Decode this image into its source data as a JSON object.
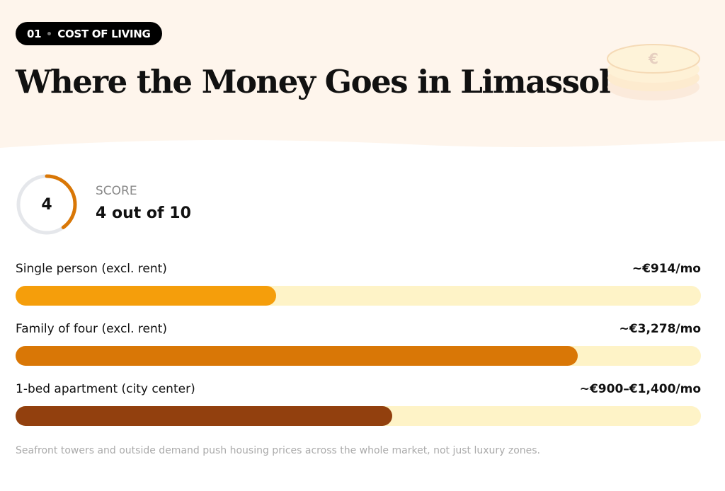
{
  "section": {
    "number": "01",
    "label": "COST OF LIVING"
  },
  "title": "Where the Money Goes in Limassol",
  "coin_symbol": "€",
  "score": {
    "value": "4",
    "label": "SCORE",
    "text": "4 out of 10",
    "fraction": 0.4,
    "color": "#d97706"
  },
  "costs": [
    {
      "label": "Single person (excl. rent)",
      "value": "~€914/mo",
      "fill_percent": 38,
      "color": "#f59e0b"
    },
    {
      "label": "Family of four (excl. rent)",
      "value": "~€3,278/mo",
      "fill_percent": 82,
      "color": "#d97706"
    },
    {
      "label": "1-bed apartment (city center)",
      "value": "~€900–€1,400/mo",
      "fill_percent": 55,
      "color": "#92400e"
    }
  ],
  "note": "Seafront towers and outside demand push housing prices across the whole market, not just luxury zones."
}
